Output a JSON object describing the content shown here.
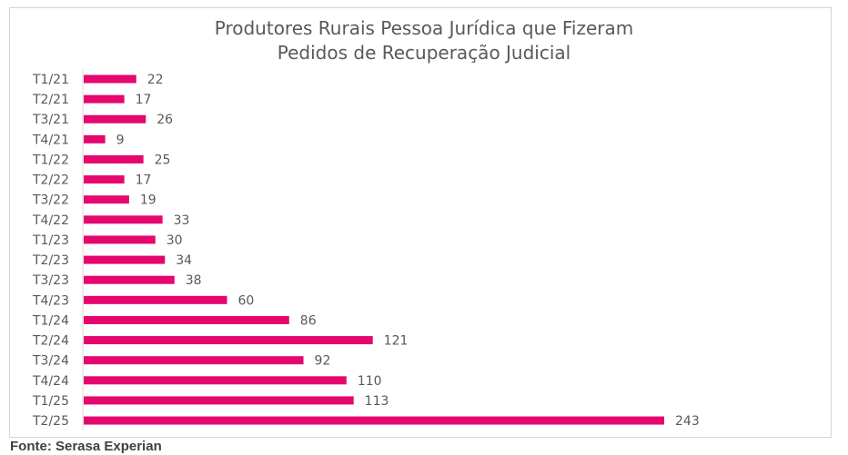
{
  "chart_data": {
    "type": "bar",
    "orientation": "horizontal",
    "title": "Produtores Rurais Pessoa Jurídica que Fizeram Pedidos de Recuperação Judicial",
    "title_lines": [
      "Produtores Rurais Pessoa Jurídica que Fizeram",
      "Pedidos de Recuperação Judicial"
    ],
    "categories": [
      "T1/21",
      "T2/21",
      "T3/21",
      "T4/21",
      "T1/22",
      "T2/22",
      "T3/22",
      "T4/22",
      "T1/23",
      "T2/23",
      "T3/23",
      "T4/23",
      "T1/24",
      "T2/24",
      "T3/24",
      "T4/24",
      "T1/25",
      "T2/25"
    ],
    "values": [
      22,
      17,
      26,
      9,
      25,
      17,
      19,
      33,
      30,
      34,
      38,
      60,
      86,
      121,
      92,
      110,
      113,
      243
    ],
    "data_labels": true,
    "grid": false,
    "legend": "none",
    "xlim": [
      0,
      243
    ],
    "bar_color": "#e5066e"
  },
  "source": "Fonte: Serasa Experian"
}
